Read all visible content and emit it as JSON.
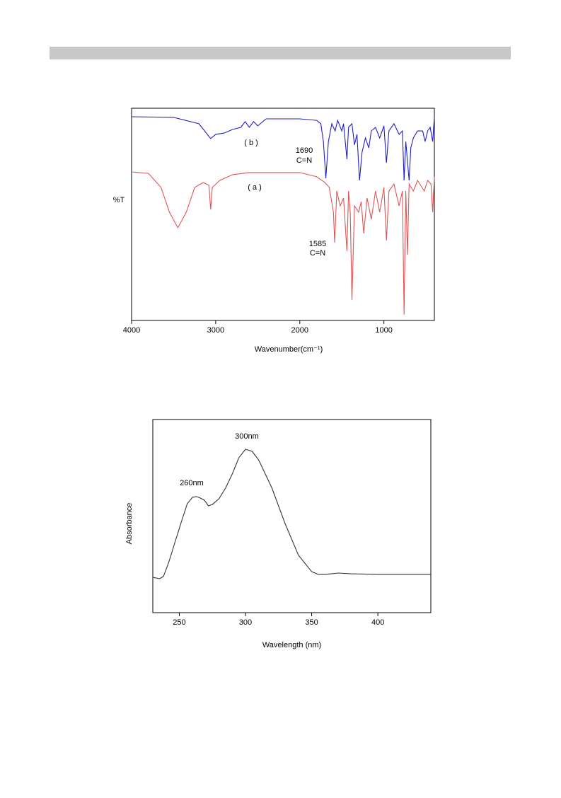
{
  "chart_data": [
    {
      "type": "line",
      "x_label": "Wavenumber(cm⁻¹)",
      "y_label": "%T",
      "xlim": [
        4000,
        400
      ],
      "ylim": [
        0,
        100
      ],
      "xticks": [
        4000,
        3000,
        2000,
        1000
      ],
      "annotations": [
        "( b )",
        "( a )",
        "1690",
        "C=N",
        "1585",
        "C=N"
      ],
      "series": [
        {
          "name": "( b )",
          "color": "#1f1fc8",
          "x": [
            4000,
            3500,
            3200,
            3100,
            3060,
            3000,
            2900,
            2800,
            2700,
            2650,
            2600,
            2550,
            2500,
            2400,
            2000,
            1800,
            1750,
            1720,
            1690,
            1660,
            1620,
            1580,
            1550,
            1500,
            1480,
            1440,
            1420,
            1380,
            1350,
            1320,
            1290,
            1260,
            1220,
            1180,
            1150,
            1100,
            1050,
            1000,
            970,
            940,
            880,
            820,
            780,
            760,
            740,
            700,
            680,
            650,
            600,
            540,
            510,
            480,
            450,
            420,
            400
          ],
          "values": [
            96,
            95.7,
            92.7,
            87.7,
            85.7,
            87.7,
            88.3,
            90,
            91,
            93.7,
            91,
            93.7,
            91.7,
            95,
            95,
            94.3,
            92.7,
            84.3,
            67,
            84.3,
            92.7,
            89.3,
            94.3,
            89.3,
            92.7,
            76,
            91,
            92.7,
            82.7,
            87.7,
            66,
            79.3,
            86,
            81.3,
            89.3,
            91,
            86,
            91.7,
            74.3,
            89.3,
            92.7,
            87.7,
            89.3,
            66,
            84.3,
            66,
            81.3,
            86,
            89.3,
            89.3,
            84.3,
            89.3,
            91,
            84.3,
            96
          ]
        },
        {
          "name": "( a )",
          "color": "#e05555",
          "x": [
            4000,
            3800,
            3650,
            3550,
            3450,
            3350,
            3250,
            3150,
            3080,
            3060,
            3040,
            2950,
            2800,
            2600,
            2000,
            1800,
            1700,
            1650,
            1600,
            1585,
            1560,
            1520,
            1480,
            1440,
            1420,
            1400,
            1380,
            1350,
            1300,
            1270,
            1240,
            1200,
            1150,
            1100,
            1050,
            1000,
            970,
            940,
            880,
            820,
            780,
            760,
            740,
            720,
            700,
            650,
            600,
            520,
            480,
            440,
            420,
            400
          ],
          "values": [
            70,
            69.3,
            62.7,
            51,
            43.7,
            51,
            62.7,
            65,
            63.7,
            52.3,
            62.7,
            66,
            68.7,
            69.7,
            69.7,
            67.7,
            65,
            62.7,
            51,
            36.7,
            61,
            54,
            57.7,
            32.7,
            61,
            51,
            9.7,
            54,
            51,
            56,
            41,
            57.7,
            47.7,
            61,
            51,
            62.7,
            37.7,
            61,
            64.3,
            54,
            61,
            2.7,
            61,
            31,
            64.3,
            61,
            66,
            61,
            66,
            64.3,
            51,
            67.7
          ]
        }
      ]
    },
    {
      "type": "line",
      "x_label": "Wavelength (nm)",
      "y_label": "Absorbance",
      "xlim": [
        230,
        440
      ],
      "ylim": [
        0,
        100
      ],
      "xticks": [
        250,
        300,
        350,
        400
      ],
      "annotations": [
        "260nm",
        "300nm"
      ],
      "series": [
        {
          "color": "#333333",
          "x": [
            230,
            235,
            238,
            242,
            247,
            252,
            256,
            260,
            263,
            266,
            269,
            272,
            275,
            280,
            285,
            290,
            295,
            300,
            305,
            310,
            320,
            330,
            340,
            350,
            355,
            360,
            365,
            370,
            380,
            400,
            440
          ],
          "values": [
            18.3,
            17.6,
            18.7,
            26,
            37,
            48,
            56.4,
            59.7,
            60.1,
            59.3,
            58.2,
            55.3,
            56,
            59,
            64.5,
            71.8,
            80.2,
            84.6,
            83.5,
            79,
            64.5,
            46,
            29.7,
            21.2,
            19.8,
            19.8,
            20.1,
            20.5,
            20.1,
            19.8,
            19.8
          ]
        }
      ]
    }
  ]
}
